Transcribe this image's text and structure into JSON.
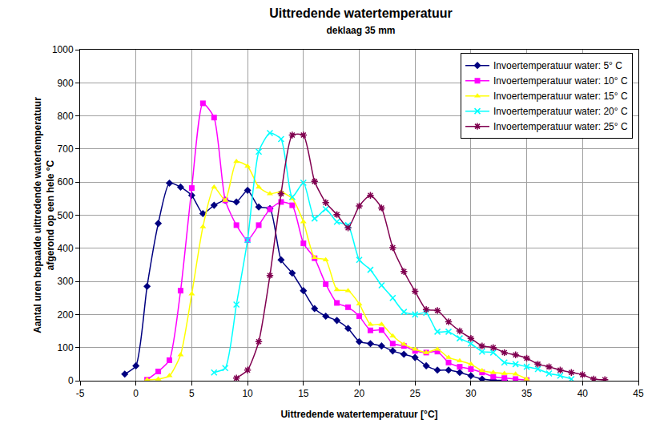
{
  "chart_data": {
    "type": "line",
    "title": "Uittredende watertemperatuur",
    "subtitle": "deklaag 35 mm",
    "x_label": "Uittredende watertemperatuur [°C]",
    "y_label": "Aantal uren bepaalde uittredende watertemperatuur afgerond op een hele °C",
    "xlim": [
      -5,
      45
    ],
    "xticks": [
      -5,
      0,
      5,
      10,
      15,
      20,
      25,
      30,
      35,
      40,
      45
    ],
    "ylim": [
      0,
      1000
    ],
    "yticks": [
      0,
      100,
      200,
      300,
      400,
      500,
      600,
      700,
      800,
      900,
      1000
    ],
    "grid": true,
    "legend": "top right",
    "series": [
      {
        "name": "Invoertemperatuur water: 5° C",
        "color": "#000080",
        "marker": "diamond",
        "x": [
          -1,
          0,
          1,
          2,
          3,
          4,
          5,
          6,
          7,
          8,
          9,
          10,
          11,
          12,
          13,
          14,
          15,
          16,
          17,
          18,
          19,
          20,
          21,
          22,
          23,
          24,
          25,
          26,
          27,
          28,
          29,
          30,
          31,
          32,
          33
        ],
        "values": [
          20,
          45,
          285,
          475,
          597,
          585,
          560,
          505,
          530,
          545,
          540,
          575,
          525,
          520,
          365,
          325,
          272,
          218,
          195,
          182,
          158,
          118,
          112,
          105,
          90,
          80,
          70,
          45,
          32,
          32,
          25,
          15,
          5,
          2,
          1
        ]
      },
      {
        "name": "Invoertemperatuur water: 10° C",
        "color": "#ff00ff",
        "marker": "square",
        "x": [
          1,
          2,
          3,
          4,
          5,
          6,
          7,
          8,
          9,
          10,
          11,
          12,
          13,
          14,
          15,
          16,
          17,
          18,
          19,
          20,
          21,
          22,
          23,
          24,
          25,
          26,
          27,
          28,
          29,
          30,
          31,
          32,
          33,
          34,
          35
        ],
        "values": [
          3,
          28,
          62,
          272,
          582,
          838,
          795,
          545,
          470,
          425,
          470,
          518,
          540,
          530,
          415,
          370,
          292,
          235,
          222,
          195,
          152,
          153,
          112,
          105,
          90,
          85,
          88,
          55,
          42,
          35,
          25,
          12,
          8,
          5,
          2
        ]
      },
      {
        "name": "Invoertemperatuur water: 15° C",
        "color": "#ffff00",
        "marker": "triangle",
        "x": [
          1,
          2,
          3,
          4,
          5,
          6,
          7,
          8,
          9,
          10,
          11,
          12,
          13,
          14,
          15,
          16,
          17,
          18,
          19,
          20,
          21,
          22,
          23,
          24,
          25,
          26,
          27,
          28,
          29,
          30,
          31,
          32,
          33,
          34,
          35
        ],
        "values": [
          3,
          5,
          15,
          78,
          262,
          465,
          585,
          545,
          662,
          648,
          585,
          565,
          570,
          550,
          480,
          372,
          365,
          275,
          272,
          232,
          170,
          170,
          135,
          110,
          95,
          85,
          95,
          70,
          60,
          50,
          30,
          25,
          22,
          20,
          5
        ]
      },
      {
        "name": "Invoertemperatuur water: 20° C",
        "color": "#00ffff",
        "marker": "x",
        "x": [
          7,
          8,
          9,
          10,
          11,
          12,
          13,
          14,
          15,
          16,
          17,
          18,
          19,
          20,
          21,
          22,
          23,
          24,
          25,
          26,
          27,
          28,
          29,
          30,
          31,
          32,
          33,
          34,
          35,
          36,
          37,
          38,
          39
        ],
        "values": [
          25,
          38,
          230,
          425,
          692,
          748,
          730,
          555,
          598,
          490,
          518,
          480,
          470,
          365,
          335,
          288,
          250,
          208,
          200,
          205,
          148,
          148,
          128,
          112,
          88,
          85,
          55,
          50,
          42,
          35,
          22,
          15,
          5
        ]
      },
      {
        "name": "Invoertemperatuur water: 25° C",
        "color": "#800050",
        "marker": "asterisk",
        "x": [
          9,
          10,
          11,
          12,
          13,
          14,
          15,
          16,
          17,
          18,
          19,
          20,
          21,
          22,
          23,
          24,
          25,
          26,
          27,
          28,
          29,
          30,
          31,
          32,
          33,
          34,
          35,
          36,
          37,
          38,
          39,
          40,
          41,
          42
        ],
        "values": [
          8,
          32,
          118,
          318,
          565,
          742,
          742,
          602,
          538,
          502,
          462,
          528,
          560,
          522,
          402,
          330,
          270,
          215,
          212,
          178,
          150,
          128,
          105,
          100,
          85,
          78,
          68,
          50,
          42,
          32,
          25,
          18,
          5,
          3
        ]
      }
    ]
  }
}
